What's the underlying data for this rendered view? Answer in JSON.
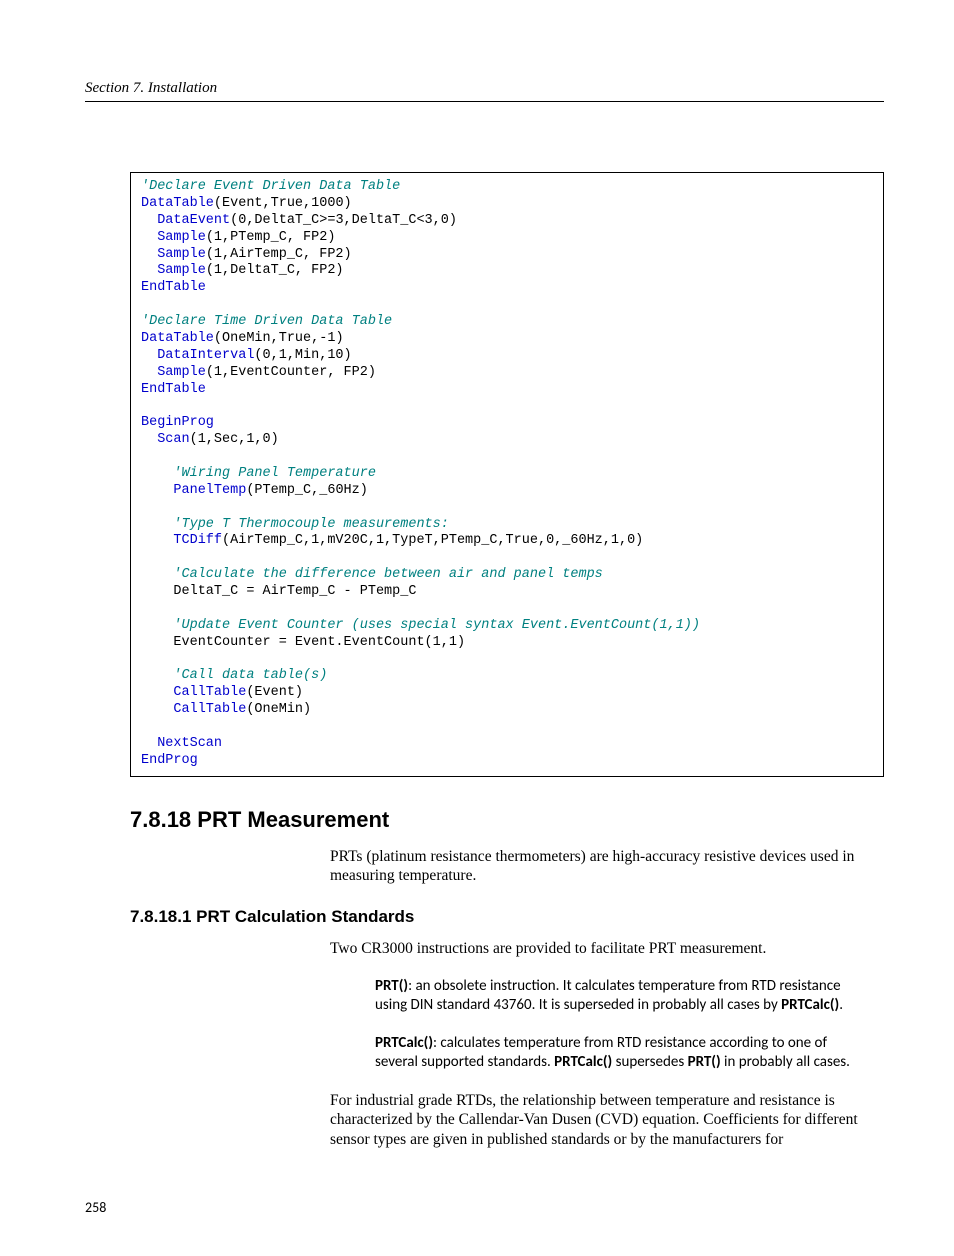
{
  "header": "Section 7.  Installation",
  "code": {
    "l1": "'Declare Event Driven Data Table",
    "l2a": "DataTable",
    "l2b": "(Event,True,1000)",
    "l3a": "DataEvent",
    "l3b": "(0,DeltaT_C>=3,DeltaT_C<3,0)",
    "l4a": "Sample",
    "l4b": "(1,PTemp_C, FP2)",
    "l5a": "Sample",
    "l5b": "(1,AirTemp_C, FP2)",
    "l6a": "Sample",
    "l6b": "(1,DeltaT_C, FP2)",
    "l7": "EndTable",
    "l8": "'Declare Time Driven Data Table",
    "l9a": "DataTable",
    "l9b": "(OneMin,True,-1)",
    "l10a": "DataInterval",
    "l10b": "(0,1,Min,10)",
    "l11a": "Sample",
    "l11b": "(1,EventCounter, FP2)",
    "l12": "EndTable",
    "l13": "BeginProg",
    "l14a": "Scan",
    "l14b": "(1,Sec,1,0)",
    "l15": "'Wiring Panel Temperature",
    "l16a": "PanelTemp",
    "l16b": "(PTemp_C,_60Hz)",
    "l17": "'Type T Thermocouple measurements:",
    "l18a": "TCDiff",
    "l18b": "(AirTemp_C,1,mV20C,1,TypeT,PTemp_C,True,0,_60Hz,1,0)",
    "l19": "'Calculate the difference between air and panel temps",
    "l20": "DeltaT_C = AirTemp_C - PTemp_C",
    "l21": "'Update Event Counter (uses special syntax Event.EventCount(1,1))",
    "l22": "EventCounter = Event.EventCount(1,1)",
    "l23": "'Call data table(s)",
    "l24a": "CallTable",
    "l24b": "(Event)",
    "l25a": "CallTable",
    "l25b": "(OneMin)",
    "l26": "NextScan",
    "l27": "EndProg"
  },
  "h2": "7.8.18 PRT Measurement",
  "para1": "PRTs (platinum resistance thermometers) are high-accuracy resistive devices used in measuring temperature.",
  "h3": "7.8.18.1 PRT Calculation Standards",
  "para2": "Two CR3000 instructions are provided to facilitate PRT measurement.",
  "block1_bold1": "PRT()",
  "block1_text1": ": an obsolete instruction.  It calculates temperature from RTD resistance using DIN standard 43760.  It is superseded in probably all cases by ",
  "block1_bold2": "PRTCalc()",
  "block1_text2": ".",
  "block2_bold1": "PRTCalc()",
  "block2_text1": ": calculates temperature from RTD resistance according to one of several supported standards.  ",
  "block2_bold2": "PRTCalc()",
  "block2_text2": " supersedes ",
  "block2_bold3": "PRT()",
  "block2_text3": " in probably all cases.",
  "para3": "For industrial grade RTDs, the relationship between temperature and resistance is characterized by the Callendar-Van Dusen (CVD) equation.  Coefficients for different sensor types are given in published standards or by the manufacturers for",
  "page_num": "258"
}
